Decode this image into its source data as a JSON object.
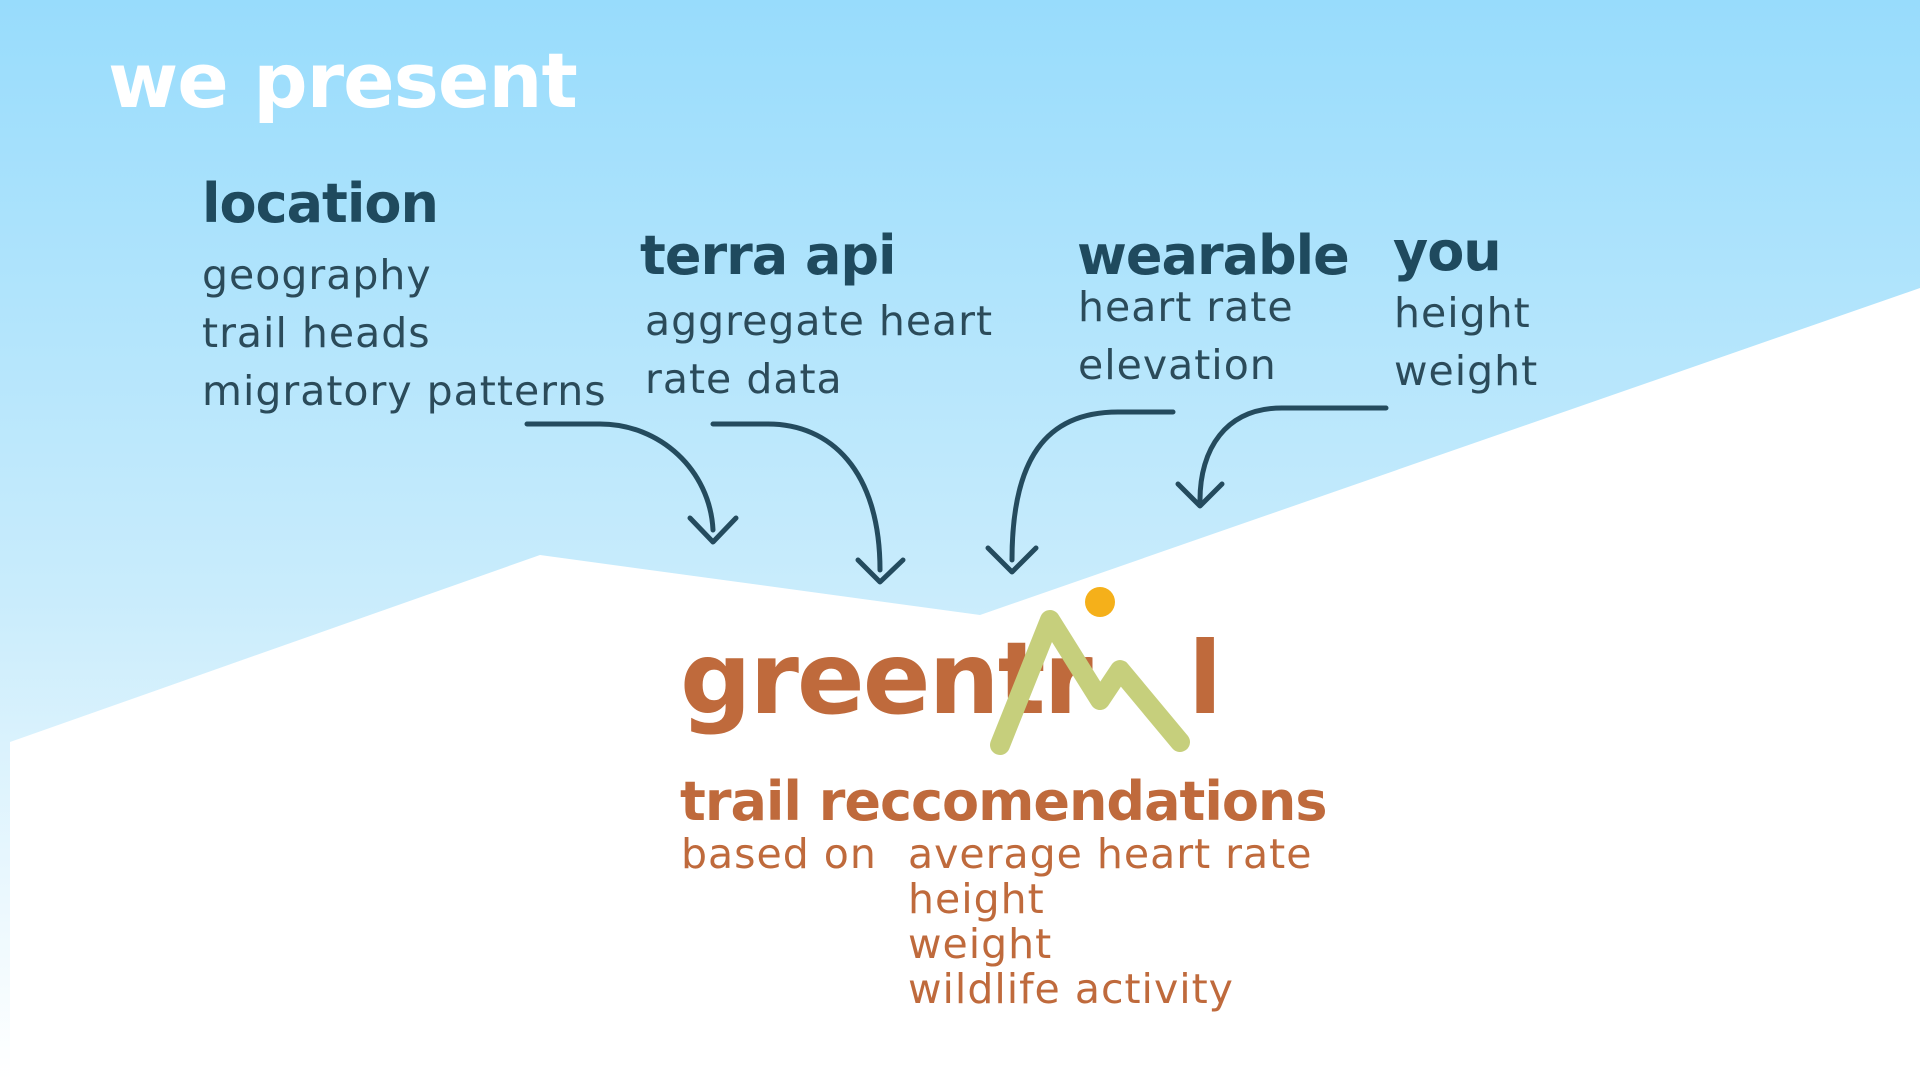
{
  "slide": {
    "title": "we present",
    "colors": {
      "sky": "#9bdcf8",
      "heading": "#1f4a5e",
      "text": "#2b4b5a",
      "brand": "#bf6a3c",
      "mountain": "#c6cf7c",
      "sun": "#f5b01a"
    }
  },
  "sources": [
    {
      "heading": "location",
      "items": [
        "geography",
        "trail heads",
        "migratory patterns"
      ]
    },
    {
      "heading": "terra api",
      "items": [
        "aggregate heart",
        "rate data"
      ]
    },
    {
      "heading": "wearable",
      "items": [
        "heart rate",
        "elevation"
      ]
    },
    {
      "heading": "you",
      "items": [
        "height",
        "weight"
      ]
    }
  ],
  "product": {
    "name_prefix": "greentr",
    "name_suffix": "l",
    "logo_icon": "mountain-sun-icon"
  },
  "output": {
    "heading": "trail reccomendations",
    "based_on_label": "based on",
    "factors": [
      "average heart rate",
      "height",
      "weight",
      "wildlife activity"
    ]
  }
}
